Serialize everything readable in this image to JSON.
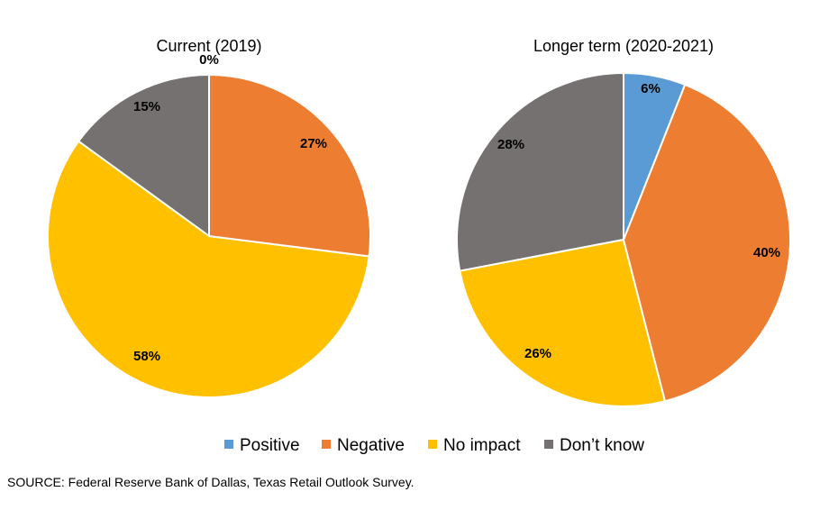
{
  "chart_data": [
    {
      "type": "pie",
      "title": "Current (2019)",
      "categories": [
        "Positive",
        "Negative",
        "No impact",
        "Don’t know"
      ],
      "values": [
        0,
        27,
        58,
        15
      ],
      "labels": [
        "0%",
        "27%",
        "58%",
        "15%"
      ]
    },
    {
      "type": "pie",
      "title": "Longer term (2020-2021)",
      "categories": [
        "Positive",
        "Negative",
        "No impact",
        "Don’t know"
      ],
      "values": [
        6,
        40,
        26,
        28
      ],
      "labels": [
        "6%",
        "40%",
        "26%",
        "28%"
      ]
    }
  ],
  "legend": {
    "items": [
      {
        "label": "Positive",
        "color": "#5b9bd5"
      },
      {
        "label": "Negative",
        "color": "#ed7d31"
      },
      {
        "label": "No impact",
        "color": "#ffc000"
      },
      {
        "label": "Don’t know",
        "color": "#767171"
      }
    ]
  },
  "source": "SOURCE: Federal Reserve Bank of Dallas, Texas Retail Outlook Survey."
}
